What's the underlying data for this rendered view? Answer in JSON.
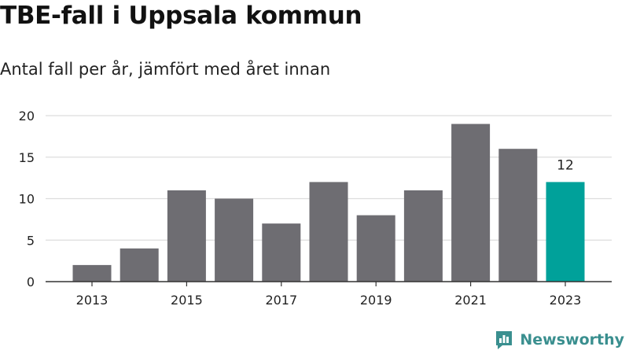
{
  "title": "TBE-fall i Uppsala kommun",
  "subtitle": "Antal fall per år, jämfört med året innan",
  "brand": "Newsworthy",
  "colors": {
    "bar": "#6e6d72",
    "highlight": "#00a19a",
    "grid": "#dddddd",
    "axis": "#333333",
    "brand": "#3a8f8f"
  },
  "chart_data": {
    "type": "bar",
    "categories": [
      "2013",
      "2014",
      "2015",
      "2016",
      "2017",
      "2018",
      "2019",
      "2020",
      "2021",
      "2022",
      "2023"
    ],
    "values": [
      2,
      4,
      11,
      10,
      7,
      12,
      8,
      11,
      19,
      16,
      12
    ],
    "x_tick_labels": [
      "2013",
      "2015",
      "2017",
      "2019",
      "2021",
      "2023"
    ],
    "y_ticks": [
      0,
      5,
      10,
      15,
      20
    ],
    "ylim": [
      0,
      20
    ],
    "highlight_category": "2023",
    "data_labels": [
      {
        "category": "2023",
        "text": "12"
      }
    ],
    "grid": true,
    "xlabel": "",
    "ylabel": ""
  }
}
